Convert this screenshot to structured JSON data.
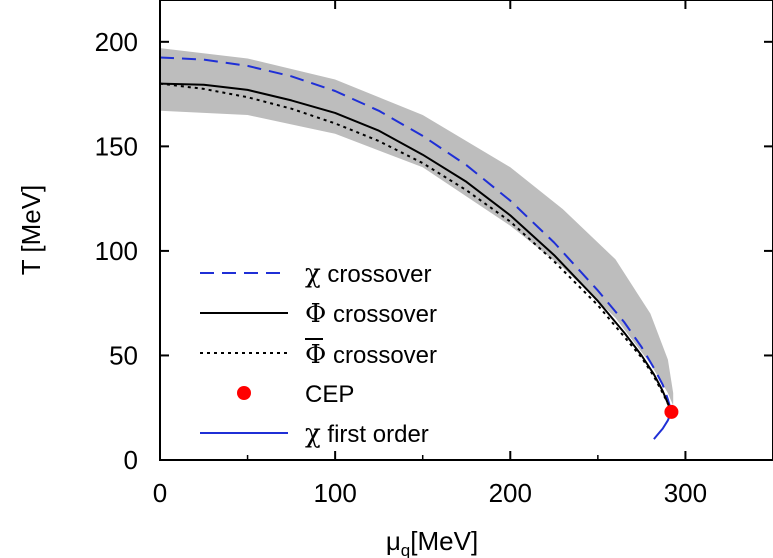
{
  "chart_data": {
    "type": "line",
    "xlabel_main": "μ",
    "xlabel_sub": "q",
    "xlabel_unit": "[MeV]",
    "ylabel": "T [MeV]",
    "xlim": [
      0,
      350
    ],
    "ylim": [
      0,
      220
    ],
    "x_ticks": [
      0,
      100,
      200,
      300
    ],
    "y_ticks": [
      0,
      50,
      100,
      150,
      200
    ],
    "grid": false,
    "legend_position": "bottom-left",
    "colors": {
      "chi": "#1f2fd6",
      "phi": "#000000",
      "phibar": "#000000",
      "cep": "#ff0000",
      "band": "#bdbdbd"
    },
    "band": {
      "x": [
        0,
        50,
        100,
        150,
        200,
        230,
        260,
        280,
        290,
        293
      ],
      "upper": [
        197,
        192,
        182,
        165,
        140,
        120,
        96,
        70,
        48,
        32
      ],
      "lower": [
        167,
        165,
        156,
        140,
        112,
        92,
        68,
        46,
        32,
        26
      ]
    },
    "series": [
      {
        "name": "χ crossover",
        "legend_symbol": "χ",
        "legend_rest": " crossover",
        "style": "dashed",
        "color": "#1f2fd6",
        "x": [
          0,
          25,
          50,
          75,
          100,
          125,
          150,
          175,
          200,
          225,
          250,
          265,
          275,
          282,
          287,
          290,
          292
        ],
        "y": [
          192.5,
          191.5,
          188.5,
          183.5,
          176.5,
          167,
          155,
          141,
          124,
          104,
          81,
          66,
          54,
          44,
          36,
          29,
          23
        ]
      },
      {
        "name": "Φ crossover",
        "legend_symbol": "Φ",
        "legend_rest": " crossover",
        "style": "solid",
        "color": "#000000",
        "x": [
          0,
          25,
          50,
          75,
          100,
          125,
          150,
          175,
          200,
          225,
          250,
          265,
          275,
          282,
          287,
          290,
          292
        ],
        "y": [
          180,
          179.5,
          177,
          172,
          166,
          157.5,
          146,
          133,
          117,
          98,
          76,
          61,
          50,
          41,
          33,
          27,
          23
        ]
      },
      {
        "name": "Φ̄ crossover",
        "legend_symbol": "Φ",
        "legend_rest": " crossover",
        "style": "dotted",
        "color": "#000000",
        "x": [
          0,
          25,
          50,
          75,
          100,
          125,
          150,
          175,
          200,
          225,
          250,
          265,
          275,
          282,
          287,
          290,
          292
        ],
        "y": [
          180,
          177.5,
          173.5,
          168,
          161,
          152.5,
          142,
          129,
          114,
          95,
          74,
          59,
          49,
          40,
          32,
          27,
          23
        ]
      },
      {
        "name": "χ first order",
        "legend_symbol": "χ",
        "legend_rest": " first order",
        "style": "solid",
        "color": "#1f2fd6",
        "x": [
          292,
          290,
          287,
          284,
          282
        ],
        "y": [
          23,
          19,
          15,
          12,
          10
        ]
      }
    ],
    "cep": {
      "name": "CEP",
      "x": 292,
      "y": 23,
      "color": "#ff0000"
    }
  }
}
